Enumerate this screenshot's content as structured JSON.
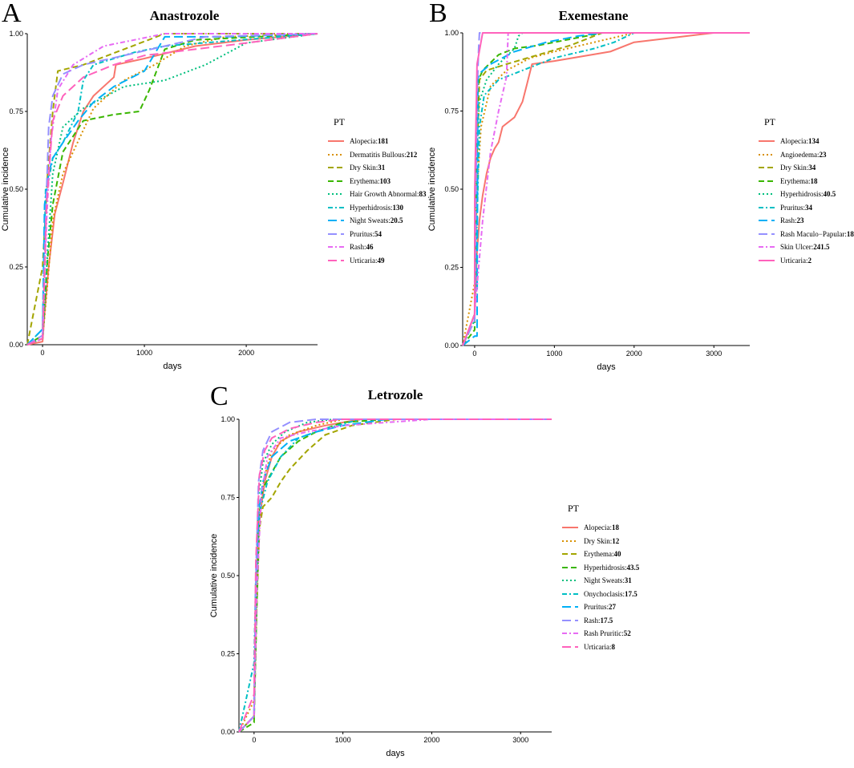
{
  "chart_data": [
    {
      "type": "line",
      "panel_label": "A",
      "title": "Anastrozole",
      "xlabel": "days",
      "ylabel": "Cumulative incidence",
      "xlim": [
        -150,
        2700
      ],
      "ylim": [
        0,
        1
      ],
      "xticks": [
        0,
        1000,
        2000
      ],
      "yticks": [
        "0.00",
        "0.25",
        "0.50",
        "0.75",
        "1.00"
      ],
      "legend_title": "PT",
      "series": [
        {
          "name": "Alopecia",
          "value": "181",
          "color": "#F8766D",
          "dash": "solid",
          "x": [
            -150,
            0,
            20,
            60,
            120,
            200,
            300,
            400,
            500,
            700,
            720,
            1000,
            1500,
            2000,
            2700
          ],
          "y": [
            0,
            0.01,
            0.1,
            0.25,
            0.42,
            0.52,
            0.65,
            0.75,
            0.8,
            0.86,
            0.9,
            0.92,
            0.96,
            0.98,
            1.0
          ]
        },
        {
          "name": "Dermatitis Bullous",
          "value": "212",
          "color": "#D89000",
          "dash": "dotted",
          "x": [
            -150,
            0,
            50,
            100,
            200,
            300,
            500,
            800,
            1100,
            1400,
            1800,
            2700
          ],
          "y": [
            0,
            0.02,
            0.2,
            0.4,
            0.55,
            0.62,
            0.76,
            0.85,
            0.9,
            0.96,
            0.99,
            1.0
          ]
        },
        {
          "name": "Dry Skin",
          "value": "31",
          "color": "#A3A500",
          "dash": "dashed",
          "x": [
            -150,
            0,
            50,
            100,
            150,
            400,
            800,
            1200,
            2700
          ],
          "y": [
            0,
            0.25,
            0.55,
            0.75,
            0.88,
            0.9,
            0.95,
            1.0,
            1.0
          ]
        },
        {
          "name": "Erythema",
          "value": "103",
          "color": "#39B600",
          "dash": "dashed",
          "x": [
            -150,
            0,
            50,
            100,
            200,
            400,
            700,
            950,
            1050,
            1200,
            1500,
            2700
          ],
          "y": [
            0,
            0.03,
            0.28,
            0.45,
            0.62,
            0.72,
            0.74,
            0.75,
            0.82,
            0.95,
            0.98,
            1.0
          ]
        },
        {
          "name": "Hair Growth Abnormal",
          "value": "83",
          "color": "#00BF7D",
          "dash": "dotted",
          "x": [
            -150,
            0,
            50,
            100,
            200,
            400,
            800,
            1200,
            1600,
            2000,
            2700
          ],
          "y": [
            0,
            0.02,
            0.3,
            0.55,
            0.7,
            0.76,
            0.83,
            0.85,
            0.9,
            0.97,
            1.0
          ]
        },
        {
          "name": "Hyperhidrosis",
          "value": "130",
          "color": "#00BFC4",
          "dash": "dashdot",
          "x": [
            -150,
            0,
            30,
            60,
            100,
            200,
            350,
            400,
            500,
            900,
            1200,
            2700
          ],
          "y": [
            0,
            0.05,
            0.5,
            0.53,
            0.6,
            0.65,
            0.75,
            0.85,
            0.9,
            0.94,
            0.96,
            1.0
          ]
        },
        {
          "name": "Night Sweats",
          "value": "20.5",
          "color": "#00B0F6",
          "dash": "longdash",
          "x": [
            -150,
            0,
            20,
            60,
            100,
            200,
            350,
            500,
            700,
            1000,
            1200,
            1800,
            2700
          ],
          "y": [
            0,
            0.05,
            0.45,
            0.55,
            0.6,
            0.65,
            0.72,
            0.78,
            0.83,
            0.88,
            0.99,
            0.99,
            1.0
          ]
        },
        {
          "name": "Pruritus",
          "value": "54",
          "color": "#9590FF",
          "dash": "longdash",
          "x": [
            -150,
            0,
            30,
            60,
            100,
            200,
            400,
            800,
            1200,
            1600,
            2700
          ],
          "y": [
            0,
            0.03,
            0.4,
            0.7,
            0.8,
            0.87,
            0.9,
            0.93,
            0.96,
            0.99,
            1.0
          ]
        },
        {
          "name": "Rash",
          "value": "46",
          "color": "#E76BF3",
          "dash": "dashdot",
          "x": [
            -150,
            0,
            40,
            80,
            150,
            300,
            600,
            900,
            1200,
            1400,
            2700
          ],
          "y": [
            0,
            0.02,
            0.4,
            0.65,
            0.82,
            0.9,
            0.96,
            0.98,
            1.0,
            1.0,
            1.0
          ]
        },
        {
          "name": "Urticaria",
          "value": "49",
          "color": "#FF62BC",
          "dash": "longdash",
          "x": [
            -150,
            0,
            40,
            100,
            200,
            400,
            700,
            1000,
            1500,
            2000,
            2700
          ],
          "y": [
            0,
            0.02,
            0.45,
            0.72,
            0.8,
            0.86,
            0.9,
            0.93,
            0.95,
            0.97,
            1.0
          ]
        }
      ]
    },
    {
      "type": "line",
      "panel_label": "B",
      "title": "Exemestane",
      "xlabel": "days",
      "ylabel": "Cumulative incidence",
      "xlim": [
        -150,
        3450
      ],
      "ylim": [
        0,
        1
      ],
      "xticks": [
        0,
        1000,
        2000,
        3000
      ],
      "yticks": [
        "0.00",
        "0.25",
        "0.50",
        "0.75",
        "1.00"
      ],
      "legend_title": "PT",
      "series": [
        {
          "name": "Alopecia",
          "value": "134",
          "color": "#F8766D",
          "dash": "solid",
          "x": [
            -150,
            0,
            30,
            60,
            100,
            150,
            200,
            250,
            300,
            350,
            400,
            500,
            600,
            650,
            700,
            720,
            1000,
            1700,
            2000,
            3000,
            3450
          ],
          "y": [
            0,
            0.1,
            0.3,
            0.4,
            0.48,
            0.55,
            0.6,
            0.63,
            0.65,
            0.7,
            0.71,
            0.73,
            0.78,
            0.83,
            0.88,
            0.9,
            0.91,
            0.94,
            0.97,
            1.0,
            1.0
          ]
        },
        {
          "name": "Angioedema",
          "value": "23",
          "color": "#D89000",
          "dash": "dotted",
          "x": [
            -150,
            0,
            30,
            80,
            200,
            400,
            700,
            1000,
            1500,
            2000,
            3450
          ],
          "y": [
            0,
            0.2,
            0.5,
            0.7,
            0.83,
            0.88,
            0.92,
            0.94,
            0.97,
            1.0,
            1.0
          ]
        },
        {
          "name": "Dry Skin",
          "value": "34",
          "color": "#A3A500",
          "dash": "dashed",
          "x": [
            -150,
            0,
            30,
            60,
            150,
            400,
            800,
            1200,
            1600,
            3450
          ],
          "y": [
            0,
            0.1,
            0.6,
            0.85,
            0.88,
            0.9,
            0.93,
            0.96,
            1.0,
            1.0
          ]
        },
        {
          "name": "Erythema",
          "value": "18",
          "color": "#39B600",
          "dash": "dashed",
          "x": [
            -150,
            0,
            20,
            50,
            100,
            300,
            500,
            800,
            1200,
            1600,
            3450
          ],
          "y": [
            0,
            0.05,
            0.7,
            0.85,
            0.88,
            0.93,
            0.95,
            0.96,
            0.98,
            1.0,
            1.0
          ]
        },
        {
          "name": "Hyperhidrosis",
          "value": "40.5",
          "color": "#00BF7D",
          "dash": "dotted",
          "x": [
            -150,
            0,
            20,
            60,
            150,
            300,
            500,
            550,
            600,
            3450
          ],
          "y": [
            0,
            0.08,
            0.6,
            0.78,
            0.85,
            0.9,
            0.95,
            0.99,
            1.0,
            1.0
          ]
        },
        {
          "name": "Pruritus",
          "value": "34",
          "color": "#00BFC4",
          "dash": "dashdot",
          "x": [
            -150,
            0,
            30,
            60,
            120,
            300,
            600,
            1000,
            1500,
            1750,
            2000,
            3450
          ],
          "y": [
            0,
            0.1,
            0.4,
            0.7,
            0.8,
            0.85,
            0.88,
            0.92,
            0.95,
            0.97,
            1.0,
            1.0
          ]
        },
        {
          "name": "Rash",
          "value": "23",
          "color": "#00B0F6",
          "dash": "longdash",
          "x": [
            -150,
            0,
            30,
            40,
            60,
            200,
            500,
            900,
            1300,
            1600,
            3450
          ],
          "y": [
            0,
            0.03,
            0.03,
            0.85,
            0.87,
            0.9,
            0.94,
            0.97,
            0.99,
            1.0,
            1.0
          ]
        },
        {
          "name": "Rash Maculo−Papular",
          "value": "18.5",
          "color": "#9590FF",
          "dash": "longdash",
          "x": [
            -150,
            0,
            30,
            50,
            60,
            3450
          ],
          "y": [
            0,
            0.08,
            0.8,
            0.95,
            1.0,
            1.0
          ]
        },
        {
          "name": "Skin Ulcer",
          "value": "241.5",
          "color": "#E76BF3",
          "dash": "dashdot",
          "x": [
            -150,
            0,
            100,
            200,
            300,
            400,
            420,
            3450
          ],
          "y": [
            0,
            0.1,
            0.4,
            0.62,
            0.75,
            0.86,
            1.0,
            1.0
          ]
        },
        {
          "name": "Urticaria",
          "value": "2",
          "color": "#FF62BC",
          "dash": "solid",
          "x": [
            -150,
            0,
            2,
            30,
            100,
            3450
          ],
          "y": [
            0,
            0.1,
            0.5,
            0.9,
            1.0,
            1.0
          ]
        }
      ]
    },
    {
      "type": "line",
      "panel_label": "C",
      "title": "Letrozole",
      "xlabel": "days",
      "ylabel": "Cumulative incidence",
      "xlim": [
        -170,
        3350
      ],
      "ylim": [
        0,
        1
      ],
      "xticks": [
        0,
        1000,
        2000,
        3000
      ],
      "yticks": [
        "0.00",
        "0.25",
        "0.50",
        "0.75",
        "1.00"
      ],
      "legend_title": "PT",
      "series": [
        {
          "name": "Alopecia",
          "value": "18",
          "color": "#F8766D",
          "dash": "solid",
          "x": [
            -170,
            0,
            20,
            50,
            80,
            120,
            200,
            300,
            500,
            800,
            1200,
            3350
          ],
          "y": [
            0,
            0.05,
            0.45,
            0.65,
            0.72,
            0.8,
            0.88,
            0.93,
            0.96,
            0.98,
            1.0,
            1.0
          ]
        },
        {
          "name": "Dry Skin",
          "value": "12",
          "color": "#D89000",
          "dash": "dotted",
          "x": [
            -170,
            0,
            20,
            60,
            120,
            200,
            400,
            700,
            1000,
            3350
          ],
          "y": [
            0,
            0.1,
            0.45,
            0.7,
            0.82,
            0.9,
            0.95,
            0.98,
            1.0,
            1.0
          ]
        },
        {
          "name": "Erythema",
          "value": "40",
          "color": "#A3A500",
          "dash": "dashed",
          "x": [
            -170,
            0,
            30,
            60,
            100,
            200,
            300,
            400,
            500,
            600,
            800,
            1100,
            1600,
            3350
          ],
          "y": [
            0,
            0.05,
            0.4,
            0.65,
            0.72,
            0.75,
            0.8,
            0.84,
            0.87,
            0.9,
            0.95,
            0.98,
            1.0,
            1.0
          ]
        },
        {
          "name": "Hyperhidrosis",
          "value": "43.5",
          "color": "#39B600",
          "dash": "dashed",
          "x": [
            -170,
            0,
            30,
            60,
            100,
            200,
            300,
            500,
            700,
            1000,
            1500,
            3350
          ],
          "y": [
            0,
            0.03,
            0.4,
            0.7,
            0.78,
            0.83,
            0.88,
            0.93,
            0.96,
            0.99,
            1.0,
            1.0
          ]
        },
        {
          "name": "Night Sweats",
          "value": "31",
          "color": "#00BF7D",
          "dash": "dotted",
          "x": [
            -170,
            0,
            20,
            50,
            100,
            200,
            350,
            600,
            900,
            3350
          ],
          "y": [
            0,
            0.05,
            0.5,
            0.75,
            0.86,
            0.92,
            0.96,
            0.99,
            1.0,
            1.0
          ]
        },
        {
          "name": "Onychoclasis",
          "value": "17.5",
          "color": "#00BFC4",
          "dash": "dashdot",
          "x": [
            -170,
            0,
            20,
            60,
            150,
            300,
            500,
            800,
            1200,
            3350
          ],
          "y": [
            0,
            0.22,
            0.5,
            0.7,
            0.8,
            0.88,
            0.94,
            0.97,
            1.0,
            1.0
          ]
        },
        {
          "name": "Pruritus",
          "value": "27",
          "color": "#00B0F6",
          "dash": "longdash",
          "x": [
            -170,
            0,
            20,
            50,
            100,
            200,
            400,
            700,
            1000,
            1500,
            3350
          ],
          "y": [
            0,
            0.05,
            0.45,
            0.7,
            0.8,
            0.88,
            0.93,
            0.96,
            0.98,
            1.0,
            1.0
          ]
        },
        {
          "name": "Rash",
          "value": "17.5",
          "color": "#9590FF",
          "dash": "longdash",
          "x": [
            -170,
            0,
            20,
            50,
            100,
            200,
            400,
            700,
            3350
          ],
          "y": [
            0,
            0.05,
            0.5,
            0.8,
            0.9,
            0.96,
            0.99,
            1.0,
            1.0
          ]
        },
        {
          "name": "Rash Pruritic",
          "value": "52",
          "color": "#E76BF3",
          "dash": "dashdot",
          "x": [
            -170,
            0,
            30,
            80,
            150,
            300,
            600,
            1000,
            1500,
            2000,
            3350
          ],
          "y": [
            0,
            0.05,
            0.45,
            0.75,
            0.88,
            0.94,
            0.96,
            0.98,
            0.99,
            1.0,
            1.0
          ]
        },
        {
          "name": "Urticaria",
          "value": "8",
          "color": "#FF62BC",
          "dash": "longdash",
          "x": [
            -170,
            0,
            20,
            60,
            120,
            200,
            400,
            700,
            1000,
            3350
          ],
          "y": [
            0,
            0.12,
            0.55,
            0.82,
            0.9,
            0.94,
            0.97,
            0.99,
            1.0,
            1.0
          ]
        }
      ]
    }
  ]
}
